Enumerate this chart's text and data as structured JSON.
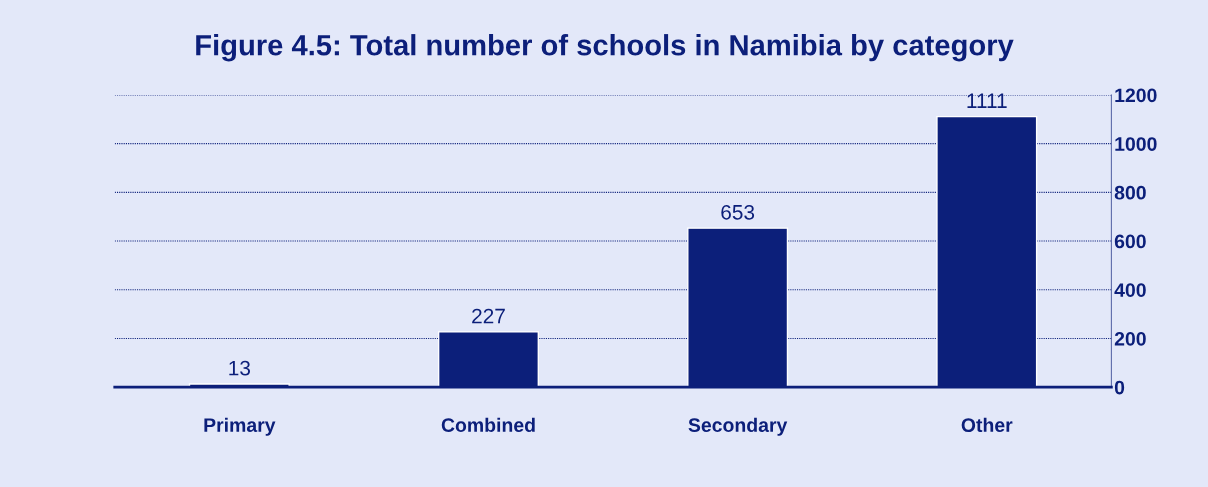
{
  "chart_data": {
    "type": "bar",
    "title": "Figure 4.5: Total number of schools in Namibia by category",
    "categories": [
      "Primary",
      "Combined",
      "Secondary",
      "Other"
    ],
    "values": [
      13,
      227,
      653,
      1111
    ],
    "color": "#0c1f7a",
    "ylim": [
      0,
      1200
    ],
    "yticks": [
      0,
      200,
      400,
      600,
      800,
      1000,
      1200
    ],
    "grid": "y",
    "data_labels": true
  }
}
